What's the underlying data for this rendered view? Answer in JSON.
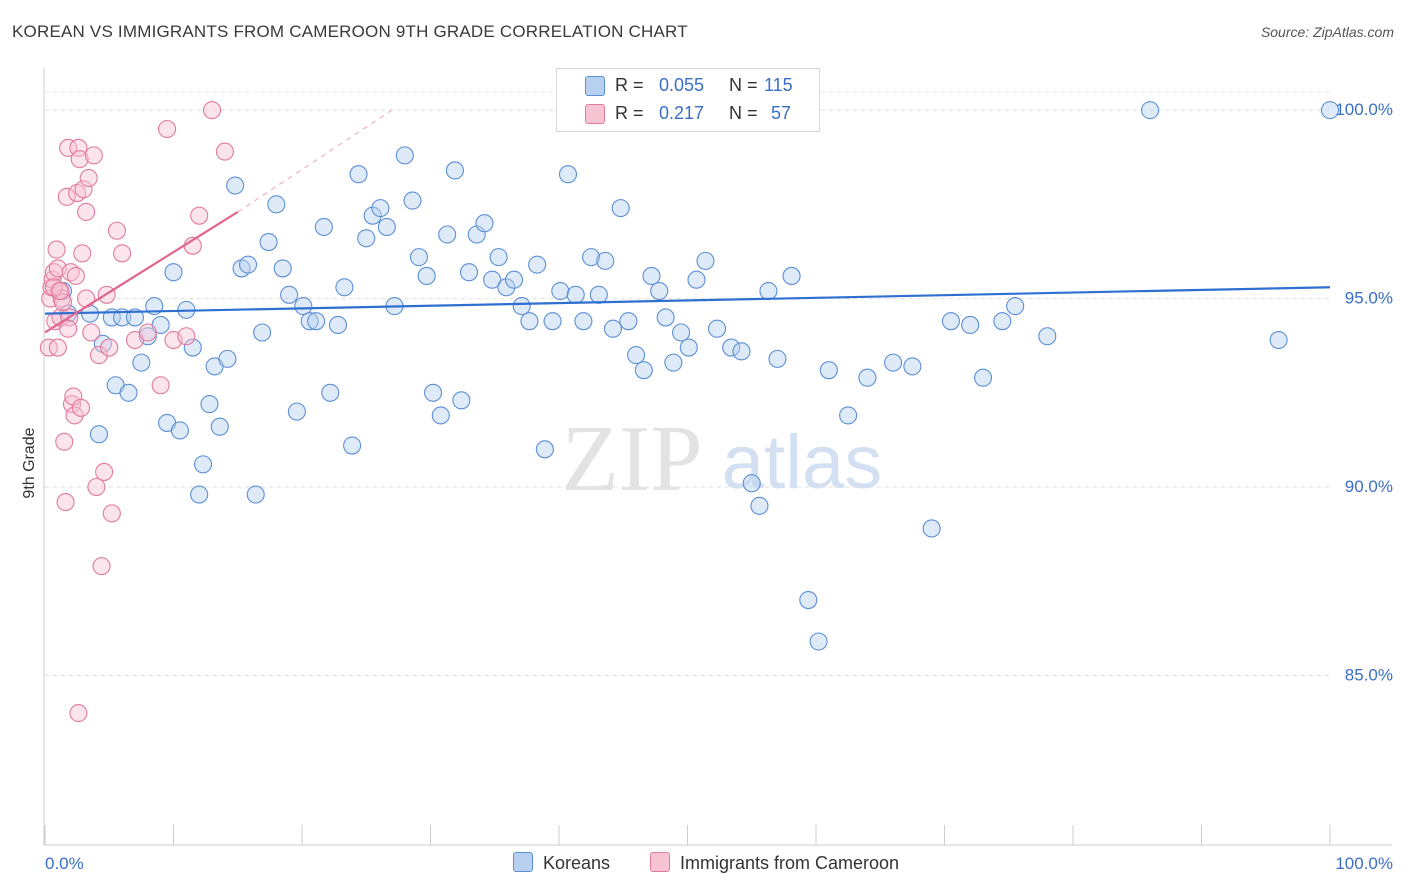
{
  "title": "KOREAN VS IMMIGRANTS FROM CAMEROON 9TH GRADE CORRELATION CHART",
  "source": "Source: ZipAtlas.com",
  "watermark_zip": "ZIP",
  "watermark_atlas": "atlas",
  "legend": {
    "r_label": "R =",
    "n_label": "N =",
    "series": [
      {
        "name": "Koreans",
        "r": "0.055",
        "n": "115",
        "color": "#5b8fd6",
        "fill": "#b8d0f0"
      },
      {
        "name": "Immigrants from Cameroon",
        "r": "0.217",
        "n": "57",
        "color": "#e27a9c",
        "fill": "#f7c4d4"
      }
    ]
  },
  "chart_data": {
    "type": "scatter",
    "title": "KOREAN VS IMMIGRANTS FROM CAMEROON 9TH GRADE CORRELATION CHART",
    "xlabel": "",
    "ylabel": "9th Grade",
    "xlim": [
      0,
      100
    ],
    "ylim": [
      80.5,
      100.8
    ],
    "x_tick_labels": [
      "0.0%",
      "100.0%"
    ],
    "y_ticks": [
      85,
      90,
      95,
      100
    ],
    "y_tick_labels": [
      "85.0%",
      "90.0%",
      "95.0%",
      "100.0%"
    ],
    "series": [
      {
        "name": "Koreans",
        "color": "#5b8fd6",
        "trend": {
          "x0": 0,
          "y0": 94.6,
          "x1": 100,
          "y1": 95.3
        },
        "points": [
          [
            1.4,
            95.2
          ],
          [
            1.8,
            94.6
          ],
          [
            3.5,
            94.6
          ],
          [
            4.2,
            91.4
          ],
          [
            4.5,
            93.8
          ],
          [
            5.2,
            94.5
          ],
          [
            5.5,
            92.7
          ],
          [
            6.0,
            94.5
          ],
          [
            6.5,
            92.5
          ],
          [
            7.0,
            94.5
          ],
          [
            7.5,
            93.3
          ],
          [
            8.0,
            94.0
          ],
          [
            8.5,
            94.8
          ],
          [
            9.0,
            94.3
          ],
          [
            9.5,
            91.7
          ],
          [
            10.0,
            95.7
          ],
          [
            10.5,
            91.5
          ],
          [
            11.0,
            94.7
          ],
          [
            11.5,
            93.7
          ],
          [
            12.0,
            89.8
          ],
          [
            12.3,
            90.6
          ],
          [
            12.8,
            92.2
          ],
          [
            13.2,
            93.2
          ],
          [
            13.6,
            91.6
          ],
          [
            14.2,
            93.4
          ],
          [
            14.8,
            98.0
          ],
          [
            15.3,
            95.8
          ],
          [
            15.8,
            95.9
          ],
          [
            16.4,
            89.8
          ],
          [
            16.9,
            94.1
          ],
          [
            17.4,
            96.5
          ],
          [
            18.0,
            97.5
          ],
          [
            18.5,
            95.8
          ],
          [
            19.0,
            95.1
          ],
          [
            19.6,
            92.0
          ],
          [
            20.1,
            94.8
          ],
          [
            20.6,
            94.4
          ],
          [
            21.1,
            94.4
          ],
          [
            21.7,
            96.9
          ],
          [
            22.2,
            92.5
          ],
          [
            22.8,
            94.3
          ],
          [
            23.3,
            95.3
          ],
          [
            23.9,
            91.1
          ],
          [
            24.4,
            98.3
          ],
          [
            25.0,
            96.6
          ],
          [
            25.5,
            97.2
          ],
          [
            26.1,
            97.4
          ],
          [
            26.6,
            96.9
          ],
          [
            27.2,
            94.8
          ],
          [
            28.0,
            98.8
          ],
          [
            28.6,
            97.6
          ],
          [
            29.1,
            96.1
          ],
          [
            29.7,
            95.6
          ],
          [
            30.2,
            92.5
          ],
          [
            30.8,
            91.9
          ],
          [
            31.3,
            96.7
          ],
          [
            31.9,
            98.4
          ],
          [
            32.4,
            92.3
          ],
          [
            33.0,
            95.7
          ],
          [
            33.6,
            96.7
          ],
          [
            34.2,
            97.0
          ],
          [
            34.8,
            95.5
          ],
          [
            35.3,
            96.1
          ],
          [
            35.9,
            95.3
          ],
          [
            36.5,
            95.5
          ],
          [
            37.1,
            94.8
          ],
          [
            37.7,
            94.4
          ],
          [
            38.3,
            95.9
          ],
          [
            38.9,
            91.0
          ],
          [
            39.5,
            94.4
          ],
          [
            40.1,
            95.2
          ],
          [
            40.7,
            98.3
          ],
          [
            41.3,
            95.1
          ],
          [
            41.9,
            94.4
          ],
          [
            42.5,
            96.1
          ],
          [
            43.1,
            95.1
          ],
          [
            43.6,
            96.0
          ],
          [
            44.2,
            94.2
          ],
          [
            44.8,
            97.4
          ],
          [
            45.4,
            94.4
          ],
          [
            46.0,
            93.5
          ],
          [
            46.6,
            93.1
          ],
          [
            47.2,
            95.6
          ],
          [
            47.8,
            95.2
          ],
          [
            48.3,
            94.5
          ],
          [
            48.9,
            93.3
          ],
          [
            49.5,
            94.1
          ],
          [
            50.1,
            93.7
          ],
          [
            50.7,
            95.5
          ],
          [
            51.4,
            96.0
          ],
          [
            52.3,
            94.2
          ],
          [
            53.4,
            93.7
          ],
          [
            54.2,
            93.6
          ],
          [
            55.0,
            90.1
          ],
          [
            55.6,
            89.5
          ],
          [
            56.3,
            95.2
          ],
          [
            57.0,
            93.4
          ],
          [
            58.1,
            95.6
          ],
          [
            59.4,
            87.0
          ],
          [
            60.2,
            85.9
          ],
          [
            61.0,
            93.1
          ],
          [
            62.5,
            91.9
          ],
          [
            64.0,
            92.9
          ],
          [
            66.0,
            93.3
          ],
          [
            67.5,
            93.2
          ],
          [
            69.0,
            88.9
          ],
          [
            70.5,
            94.4
          ],
          [
            72.0,
            94.3
          ],
          [
            73.0,
            92.9
          ],
          [
            74.5,
            94.4
          ],
          [
            75.5,
            94.8
          ],
          [
            78.0,
            94.0
          ],
          [
            86.0,
            100.0
          ],
          [
            96.0,
            93.9
          ],
          [
            100.0,
            100.0
          ]
        ]
      },
      {
        "name": "Immigrants from Cameroon",
        "color": "#e27a9c",
        "trend": {
          "x0": 0,
          "y0": 94.1,
          "x1": 15,
          "y1": 97.3
        },
        "trend_dashed_to": {
          "x": 27,
          "y": 100.0
        },
        "points": [
          [
            0.3,
            93.7
          ],
          [
            0.4,
            95.0
          ],
          [
            0.5,
            95.3
          ],
          [
            0.6,
            95.5
          ],
          [
            0.7,
            95.7
          ],
          [
            0.8,
            94.4
          ],
          [
            0.9,
            96.3
          ],
          [
            1.0,
            95.8
          ],
          [
            1.1,
            95.2
          ],
          [
            1.2,
            94.5
          ],
          [
            1.3,
            95.0
          ],
          [
            1.4,
            94.9
          ],
          [
            1.5,
            91.2
          ],
          [
            1.6,
            89.6
          ],
          [
            1.7,
            97.7
          ],
          [
            1.8,
            99.0
          ],
          [
            1.9,
            94.5
          ],
          [
            2.0,
            95.7
          ],
          [
            2.1,
            92.2
          ],
          [
            2.2,
            92.4
          ],
          [
            2.3,
            91.9
          ],
          [
            2.4,
            95.6
          ],
          [
            2.5,
            97.8
          ],
          [
            2.6,
            99.0
          ],
          [
            2.7,
            98.7
          ],
          [
            2.8,
            92.1
          ],
          [
            2.9,
            96.2
          ],
          [
            3.0,
            97.9
          ],
          [
            3.2,
            97.3
          ],
          [
            3.4,
            98.2
          ],
          [
            3.6,
            94.1
          ],
          [
            3.8,
            98.8
          ],
          [
            4.0,
            90.0
          ],
          [
            4.2,
            93.5
          ],
          [
            4.4,
            87.9
          ],
          [
            4.6,
            90.4
          ],
          [
            4.8,
            95.1
          ],
          [
            5.0,
            93.7
          ],
          [
            5.2,
            89.3
          ],
          [
            5.6,
            96.8
          ],
          [
            6.0,
            96.2
          ],
          [
            7.0,
            93.9
          ],
          [
            8.0,
            94.1
          ],
          [
            9.0,
            92.7
          ],
          [
            9.5,
            99.5
          ],
          [
            10.0,
            93.9
          ],
          [
            11.0,
            94.0
          ],
          [
            11.5,
            96.4
          ],
          [
            12.0,
            97.2
          ],
          [
            13.0,
            100.0
          ],
          [
            14.0,
            98.9
          ],
          [
            0.7,
            95.3
          ],
          [
            1.0,
            93.7
          ],
          [
            1.8,
            94.2
          ],
          [
            2.6,
            84.0
          ],
          [
            3.2,
            95.0
          ],
          [
            1.2,
            95.2
          ]
        ]
      }
    ]
  }
}
